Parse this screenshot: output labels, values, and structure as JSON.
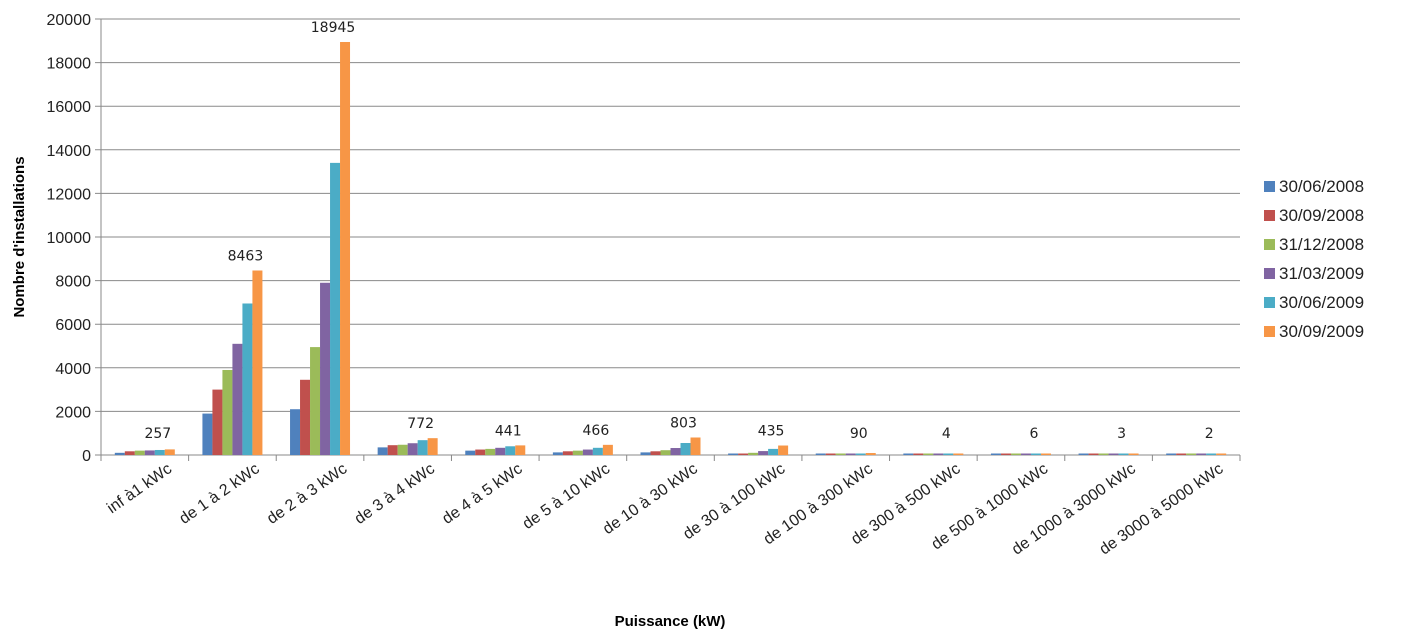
{
  "chart_data": {
    "type": "bar",
    "title": "",
    "xlabel": "Puissance (kW)",
    "ylabel": "Nombre d'installations",
    "ylim": [
      0,
      20000
    ],
    "ytick_step": 2000,
    "grid": true,
    "legend_position": "right",
    "categories": [
      "inf à1 kWc",
      "de 1 à 2 kWc",
      "de 2 à 3 kWc",
      "de 3 à 4 kWc",
      "de 4 à 5 kWc",
      "de 5 à 10 kWc",
      "de 10 à 30 kWc",
      "de 30 à 100 kWc",
      "de 100 à 300 kWc",
      "de 300 à 500 kWc",
      "de 500 à 1000 kWc",
      "de 1000 à 3000 kWc",
      "de 3000 à 5000 kWc"
    ],
    "series": [
      {
        "name": "30/06/2008",
        "color": "#4F81BD",
        "values": [
          100,
          1900,
          2100,
          350,
          200,
          120,
          120,
          20,
          5,
          1,
          1,
          1,
          1
        ]
      },
      {
        "name": "30/09/2008",
        "color": "#C0504D",
        "values": [
          170,
          3000,
          3450,
          450,
          250,
          170,
          170,
          30,
          8,
          1,
          1,
          1,
          1
        ]
      },
      {
        "name": "31/12/2008",
        "color": "#9BBB59",
        "values": [
          200,
          3900,
          4950,
          470,
          280,
          200,
          220,
          100,
          20,
          1,
          2,
          1,
          1
        ]
      },
      {
        "name": "31/03/2009",
        "color": "#8064A2",
        "values": [
          210,
          5100,
          7900,
          540,
          330,
          250,
          320,
          180,
          40,
          2,
          3,
          1,
          1
        ]
      },
      {
        "name": "30/06/2009",
        "color": "#4BACC6",
        "values": [
          230,
          6950,
          13400,
          680,
          400,
          330,
          550,
          280,
          65,
          3,
          4,
          2,
          1
        ]
      },
      {
        "name": "30/09/2009",
        "color": "#F79646",
        "values": [
          257,
          8463,
          18945,
          772,
          441,
          466,
          803,
          435,
          90,
          4,
          6,
          3,
          2
        ]
      }
    ],
    "data_labels": [
      "257",
      "8463",
      "18945",
      "772",
      "441",
      "466",
      "803",
      "435",
      "90",
      "4",
      "6",
      "3",
      "2"
    ]
  }
}
